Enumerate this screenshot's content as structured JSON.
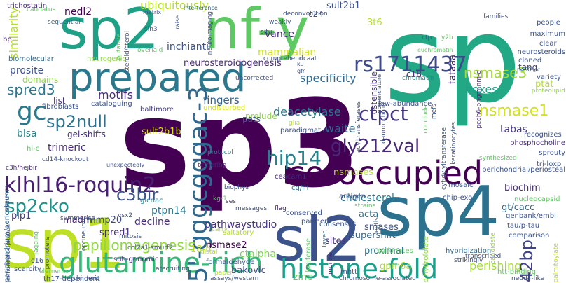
{
  "words": [
    {
      "text": "sp3",
      "color": "#440154"
    },
    {
      "text": "sp",
      "color": "#22a884"
    },
    {
      "text": "sp2",
      "color": "#1fa187"
    },
    {
      "text": "nf-y",
      "color": "#5ec962"
    },
    {
      "text": "prepared",
      "color": "#2a788e"
    },
    {
      "text": "sp4",
      "color": "#2c728e"
    },
    {
      "text": "sp1",
      "color": "#bddf26"
    },
    {
      "text": "sl2",
      "color": "#3b528b"
    },
    {
      "text": "co-occupied",
      "color": "#440154"
    },
    {
      "text": "glutamine-rich",
      "color": "#35b779"
    },
    {
      "text": "histone-fold",
      "color": "#1f9e89"
    },
    {
      "text": "5'-gggcgggac-3",
      "color": "#31688e"
    },
    {
      "text": "klhl16-roquin2",
      "color": "#481f70"
    },
    {
      "text": "gc",
      "color": "#2a788e"
    },
    {
      "text": "rs1711437",
      "color": "#3e4989"
    },
    {
      "text": "nsmase3",
      "color": "#a5db36"
    },
    {
      "text": "nsmase1",
      "color": "#d2e21b"
    },
    {
      "text": "ctpct",
      "color": "#443983"
    },
    {
      "text": "gly212val",
      "color": "#482878"
    },
    {
      "text": "hip14",
      "color": "#26828e"
    },
    {
      "text": "sp2cko",
      "color": "#21918c"
    },
    {
      "text": "sp2null",
      "color": "#2c728e"
    },
    {
      "text": "spred3",
      "color": "#2a788e"
    },
    {
      "text": "c3bir",
      "color": "#3b528b"
    },
    {
      "text": "42bp",
      "color": "#414487"
    },
    {
      "text": "papillomagenesis",
      "color": "#8fd744"
    },
    {
      "text": "ubiquitously",
      "color": "#b5de2b"
    },
    {
      "text": "similarity",
      "color": "#b5de2b"
    },
    {
      "text": "nedl2",
      "color": "#440154"
    },
    {
      "text": "mammalian",
      "color": "#d2e21b"
    },
    {
      "text": "neurosteroidogenesis",
      "color": "#482878"
    },
    {
      "text": "inchianti",
      "color": "#3b528b"
    },
    {
      "text": "vance",
      "color": "#472d7b"
    },
    {
      "text": "specificity",
      "color": "#31688e"
    },
    {
      "text": "boxes",
      "color": "#1f9e89"
    },
    {
      "text": "deacetylase",
      "color": "#2a788e"
    },
    {
      "text": "fingers",
      "color": "#32648e"
    },
    {
      "text": "motifs",
      "color": "#472d7b"
    },
    {
      "text": "prosite",
      "color": "#3b528b"
    },
    {
      "text": "blsa",
      "color": "#26828e"
    },
    {
      "text": "trimeric",
      "color": "#482878"
    },
    {
      "text": "waite",
      "color": "#31688e"
    },
    {
      "text": "tabas",
      "color": "#443983"
    },
    {
      "text": "sult2b1b",
      "color": "#d8e219"
    },
    {
      "text": "ptpn14",
      "color": "#2a788e"
    },
    {
      "text": "decline",
      "color": "#472d7b"
    },
    {
      "text": "pathwaystudio",
      "color": "#46327e"
    },
    {
      "text": "supershift",
      "color": "#31688e"
    },
    {
      "text": "smases",
      "color": "#3b528b"
    },
    {
      "text": "cholesterol",
      "color": "#2a788e"
    },
    {
      "text": "ctalpha",
      "color": "#7ad151"
    },
    {
      "text": "nsmases",
      "color": "#b5de2b"
    },
    {
      "text": "bakovic",
      "color": "#3e4989"
    },
    {
      "text": "proximal",
      "color": "#2c728e"
    },
    {
      "text": "perishing",
      "color": "#a5db36"
    },
    {
      "text": "gpm6a",
      "color": "#addc30"
    },
    {
      "text": "zinc",
      "color": "#5ec962"
    },
    {
      "text": "sites",
      "color": "#472d7b"
    },
    {
      "text": "acta",
      "color": "#2c728e"
    },
    {
      "text": "biochim",
      "color": "#472d7b"
    },
    {
      "text": "gt/cacc",
      "color": "#31688e"
    },
    {
      "text": "madm",
      "color": "#481f70"
    },
    {
      "text": "mmp20",
      "color": "#3e4989"
    },
    {
      "text": "spred1",
      "color": "#472d7b"
    },
    {
      "text": "plp1",
      "color": "#433e85"
    },
    {
      "text": "nsmase2",
      "color": "#440154"
    },
    {
      "text": "ptat",
      "color": "#b5de2b"
    },
    {
      "text": "tang",
      "color": "#433e85"
    },
    {
      "text": "c18",
      "color": "#472d7b"
    },
    {
      "text": "c24",
      "color": "#3b528b"
    },
    {
      "text": "sult2b1",
      "color": "#3b528b"
    },
    {
      "text": "3t6",
      "color": "#b5de2b"
    },
    {
      "text": "tataaa",
      "color": "#481f70"
    },
    {
      "text": "ostensible",
      "color": "#46327e"
    },
    {
      "text": "18-h",
      "color": "#b5de2b"
    },
    {
      "text": "trichostatin",
      "color": "#482878"
    },
    {
      "text": "caudatus",
      "color": "#5ec962"
    },
    {
      "text": "sequential",
      "color": "#31688e"
    },
    {
      "text": "bp",
      "color": "#482878"
    },
    {
      "text": "domains",
      "color": "#8fd744"
    },
    {
      "text": "biomolecular",
      "color": "#31688e"
    },
    {
      "text": "list",
      "color": "#472d7b"
    },
    {
      "text": "fibroblasts",
      "color": "#3b528b"
    },
    {
      "text": "cataloguing",
      "color": "#3b528b"
    },
    {
      "text": "baltimore",
      "color": "#433e85"
    },
    {
      "text": "prelude",
      "color": "#8fd744"
    },
    {
      "text": "pats",
      "color": "#3b528b"
    },
    {
      "text": "glial",
      "color": "#b5de2b"
    },
    {
      "text": "undisturbed",
      "color": "#d2e21b"
    },
    {
      "text": "paradigmatic",
      "color": "#3b528b"
    },
    {
      "text": "low-abundance",
      "color": "#3b528b"
    },
    {
      "text": "gel-shifts",
      "color": "#472d7b"
    },
    {
      "text": "hi-c",
      "color": "#5ec962"
    },
    {
      "text": "c3h/hejbir",
      "color": "#482878"
    },
    {
      "text": "cd14-knockout",
      "color": "#3b528b"
    },
    {
      "text": "unexpectedly",
      "color": "#3b528b"
    },
    {
      "text": "protocol",
      "color": "#26828e"
    },
    {
      "text": "tethering",
      "color": "#482878"
    },
    {
      "text": "ceacam1",
      "color": "#482878"
    },
    {
      "text": "cg/lh",
      "color": "#31688e"
    },
    {
      "text": "biophys",
      "color": "#3b528b"
    },
    {
      "text": "ses",
      "color": "#472d7b"
    },
    {
      "text": "kg-1",
      "color": "#5ec962"
    },
    {
      "text": "messages",
      "color": "#3b528b"
    },
    {
      "text": "flag",
      "color": "#482878"
    },
    {
      "text": "conserved",
      "color": "#3b528b"
    },
    {
      "text": "partner",
      "color": "#3b528b"
    },
    {
      "text": "glcnac",
      "color": "#26828e"
    },
    {
      "text": "summarise",
      "color": "#3b528b"
    },
    {
      "text": "vsx2",
      "color": "#3b528b"
    },
    {
      "text": "mitosis",
      "color": "#3b528b"
    },
    {
      "text": "col2a1-smurf2",
      "color": "#3b528b"
    },
    {
      "text": "sub-genomic",
      "color": "#482878"
    },
    {
      "text": "arecruiting",
      "color": "#3b528b"
    },
    {
      "text": "formaldehyde",
      "color": "#3b528b"
    },
    {
      "text": "carry",
      "color": "#b5de2b"
    },
    {
      "text": "saltatory",
      "color": "#b5de2b"
    },
    {
      "text": "distal",
      "color": "#b5de2b"
    },
    {
      "text": "paper",
      "color": "#b5de2b"
    },
    {
      "text": "assays/western",
      "color": "#3b528b"
    },
    {
      "text": "consensus",
      "color": "#3b528b"
    },
    {
      "text": "strains",
      "color": "#5ec962"
    },
    {
      "text": "antigen",
      "color": "#3b528b"
    },
    {
      "text": "mhtt",
      "color": "#3b528b"
    },
    {
      "text": "sulfonates",
      "color": "#5ec962"
    },
    {
      "text": "eqtls",
      "color": "#31688e"
    },
    {
      "text": "layer",
      "color": "#31688e"
    },
    {
      "text": "luciferase",
      "color": "#5ec962"
    },
    {
      "text": "murine",
      "color": "#482878"
    },
    {
      "text": "chromosome-associated",
      "color": "#3b528b"
    },
    {
      "text": "mosaic",
      "color": "#3b528b"
    },
    {
      "text": "chip-exo",
      "color": "#3b528b"
    },
    {
      "text": "dihydrofolate",
      "color": "#8fd744"
    },
    {
      "text": "hybridization",
      "color": "#31688e"
    },
    {
      "text": "strikingly",
      "color": "#3b528b"
    },
    {
      "text": "transcribed",
      "color": "#3b528b"
    },
    {
      "text": "htt-binding",
      "color": "#5ec962"
    },
    {
      "text": "nedd4-like",
      "color": "#3b528b"
    },
    {
      "text": "comparison",
      "color": "#3b528b"
    },
    {
      "text": "tau/p-tau",
      "color": "#3b528b"
    },
    {
      "text": "genbank/embl",
      "color": "#3b528b"
    },
    {
      "text": "nucleocapsid",
      "color": "#5ec962"
    },
    {
      "text": "candidate",
      "color": "#8fd744"
    },
    {
      "text": "palmitoylate",
      "color": "#b5de2b"
    },
    {
      "text": "tri-loxp",
      "color": "#3b528b"
    },
    {
      "text": "sprouty",
      "color": "#3b528b"
    },
    {
      "text": "perichondrial/periosteal",
      "color": "#3b528b"
    },
    {
      "text": "perichondrium/periosteum",
      "color": "#31688e"
    },
    {
      "text": "synthesized",
      "color": "#5ec962"
    },
    {
      "text": "phosphocholine",
      "color": "#472d7b"
    },
    {
      "text": "recognizes",
      "color": "#3b528b"
    },
    {
      "text": "proteolipid",
      "color": "#8fd744"
    },
    {
      "text": "variety",
      "color": "#3b528b"
    },
    {
      "text": "p450scc",
      "color": "#31688e"
    },
    {
      "text": "cloned",
      "color": "#3b528b"
    },
    {
      "text": "keratinocytes",
      "color": "#3b528b"
    },
    {
      "text": "cytidylyltransferase",
      "color": "#3b528b"
    },
    {
      "text": "mefs",
      "color": "#3b528b"
    },
    {
      "text": "chromatin",
      "color": "#26828e"
    },
    {
      "text": "conclude",
      "color": "#5ec962"
    },
    {
      "text": "acyltransferases",
      "color": "#3b528b"
    },
    {
      "text": "daunorubicin",
      "color": "#3b528b"
    },
    {
      "text": "pcdh6-phgm-nm-d",
      "color": "#482878"
    },
    {
      "text": "nomenclature",
      "color": "#3b528b"
    },
    {
      "text": "ku",
      "color": "#3b528b"
    },
    {
      "text": "gfr",
      "color": "#3b528b"
    },
    {
      "text": "ctp",
      "color": "#3b528b"
    },
    {
      "text": "y2h",
      "color": "#5ec962"
    },
    {
      "text": "euchromatin",
      "color": "#5ec962"
    },
    {
      "text": "families",
      "color": "#3b528b"
    },
    {
      "text": "people",
      "color": "#3b528b"
    },
    {
      "text": "maximum",
      "color": "#3b528b"
    },
    {
      "text": "clear",
      "color": "#3b528b"
    },
    {
      "text": "neurosteroids",
      "color": "#3b528b"
    },
    {
      "text": "deconvolution",
      "color": "#3b528b"
    },
    {
      "text": "weakly",
      "color": "#3b528b"
    },
    {
      "text": "situ",
      "color": "#3b528b"
    },
    {
      "text": "comprehend",
      "color": "#3b528b"
    },
    {
      "text": "ccaat",
      "color": "#3b528b"
    },
    {
      "text": "uncorrected",
      "color": "#3b528b"
    },
    {
      "text": "overlaid",
      "color": "#5ec962"
    },
    {
      "text": "neurogenic",
      "color": "#8fd744"
    },
    {
      "text": "neuroimaging",
      "color": "#3b528b"
    },
    {
      "text": "interference",
      "color": "#31688e"
    },
    {
      "text": "sin3",
      "color": "#3b528b"
    },
    {
      "text": "matrix",
      "color": "#3b528b"
    },
    {
      "text": "steroid/sterol",
      "color": "#3b528b"
    },
    {
      "text": "putative",
      "color": "#5ec962"
    },
    {
      "text": "raise",
      "color": "#3b528b"
    },
    {
      "text": "optineurin",
      "color": "#3b528b"
    },
    {
      "text": "promoters",
      "color": "#3b528b"
    },
    {
      "text": "jagging",
      "color": "#5ec962"
    },
    {
      "text": "immunoprecipitation",
      "color": "#3b528b"
    },
    {
      "text": "sequence",
      "color": "#3b528b"
    },
    {
      "text": "c16",
      "color": "#3b528b"
    },
    {
      "text": "scarcity",
      "color": "#3b528b"
    },
    {
      "text": "elements",
      "color": "#5ec962"
    },
    {
      "text": "th17-dependent",
      "color": "#3b528b"
    },
    {
      "text": "chimeric",
      "color": "#3b528b"
    }
  ]
}
